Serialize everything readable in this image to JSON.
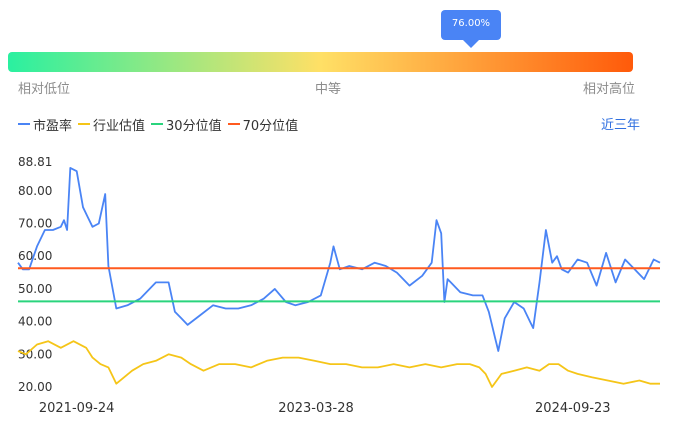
{
  "gauge": {
    "percentile": 76.0,
    "bubble_text": "76.00%",
    "low_label": "相对低位",
    "mid_label": "中等",
    "high_label": "相对高位",
    "colors": [
      "#2af0a0",
      "#ffe066",
      "#ff5a0a"
    ],
    "bubble_color": "#4a84f5"
  },
  "legend": [
    {
      "name": "市盈率",
      "color": "#4a84f5"
    },
    {
      "name": "行业估值",
      "color": "#f5c518"
    },
    {
      "name": "30分位值",
      "color": "#2ad47d"
    },
    {
      "name": "70分位值",
      "color": "#ff5a1f"
    }
  ],
  "period_label": "近三年",
  "chart_data": {
    "type": "line",
    "x_ticks": [
      "2021-09-24",
      "2023-03-28",
      "2024-09-23"
    ],
    "y_ticks": [
      "88.81",
      "80.00",
      "70.00",
      "60.00",
      "50.00",
      "40.00",
      "30.00",
      "20.00"
    ],
    "ylim": [
      20,
      88.81
    ],
    "xlim": [
      2021.43,
      2025.48
    ],
    "thresholds": {
      "p30": 46.2,
      "p70": 56.3
    },
    "series": [
      {
        "name": "市盈率",
        "color": "#4a84f5",
        "x": [
          2021.43,
          2021.46,
          2021.5,
          2021.55,
          2021.6,
          2021.65,
          2021.7,
          2021.72,
          2021.74,
          2021.76,
          2021.8,
          2021.84,
          2021.87,
          2021.9,
          2021.94,
          2021.98,
          2022.0,
          2022.05,
          2022.12,
          2022.2,
          2022.3,
          2022.38,
          2022.42,
          2022.46,
          2022.5,
          2022.58,
          2022.66,
          2022.74,
          2022.82,
          2022.9,
          2022.98,
          2023.05,
          2023.12,
          2023.18,
          2023.26,
          2023.34,
          2023.4,
          2023.42,
          2023.46,
          2023.52,
          2023.6,
          2023.68,
          2023.75,
          2023.82,
          2023.9,
          2023.98,
          2024.04,
          2024.07,
          2024.1,
          2024.12,
          2024.14,
          2024.16,
          2024.22,
          2024.3,
          2024.36,
          2024.4,
          2024.44,
          2024.46,
          2024.5,
          2024.56,
          2024.62,
          2024.66,
          2024.68,
          2024.72,
          2024.76,
          2024.8,
          2024.83,
          2024.86,
          2024.9,
          2024.96,
          2025.02,
          2025.08,
          2025.14,
          2025.2,
          2025.26,
          2025.32,
          2025.38,
          2025.44,
          2025.48
        ],
        "values": [
          58,
          56,
          56,
          63,
          68,
          68,
          69,
          71,
          68,
          87,
          86,
          75,
          72,
          69,
          70,
          79,
          57,
          44,
          45,
          47,
          52,
          52,
          43,
          41,
          39,
          42,
          45,
          44,
          44,
          45,
          47,
          50,
          46,
          45,
          46,
          48,
          58,
          63,
          56,
          57,
          56,
          58,
          57,
          55,
          51,
          54,
          58,
          71,
          67,
          46,
          53,
          52,
          49,
          48,
          48,
          43,
          35,
          31,
          41,
          46,
          44,
          40,
          38,
          52,
          68,
          58,
          60,
          56,
          55,
          59,
          58,
          51,
          61,
          52,
          59,
          56,
          53,
          59,
          58
        ]
      },
      {
        "name": "行业估值",
        "color": "#f5c518",
        "x": [
          2021.43,
          2021.48,
          2021.55,
          2021.62,
          2021.7,
          2021.78,
          2021.86,
          2021.9,
          2021.95,
          2022.0,
          2022.05,
          2022.1,
          2022.15,
          2022.22,
          2022.3,
          2022.38,
          2022.46,
          2022.52,
          2022.6,
          2022.7,
          2022.8,
          2022.9,
          2023.0,
          2023.1,
          2023.2,
          2023.3,
          2023.4,
          2023.5,
          2023.6,
          2023.7,
          2023.8,
          2023.9,
          2024.0,
          2024.1,
          2024.2,
          2024.28,
          2024.34,
          2024.38,
          2024.42,
          2024.48,
          2024.56,
          2024.64,
          2024.72,
          2024.78,
          2024.84,
          2024.9,
          2024.96,
          2025.05,
          2025.15,
          2025.25,
          2025.35,
          2025.42,
          2025.48
        ],
        "values": [
          31,
          30,
          33,
          34,
          32,
          34,
          32,
          29,
          27,
          26,
          21,
          23,
          25,
          27,
          28,
          30,
          29,
          27,
          25,
          27,
          27,
          26,
          28,
          29,
          29,
          28,
          27,
          27,
          26,
          26,
          27,
          26,
          27,
          26,
          27,
          27,
          26,
          24,
          20,
          24,
          25,
          26,
          25,
          27,
          27,
          25,
          24,
          23,
          22,
          21,
          22,
          21,
          21
        ]
      }
    ]
  }
}
